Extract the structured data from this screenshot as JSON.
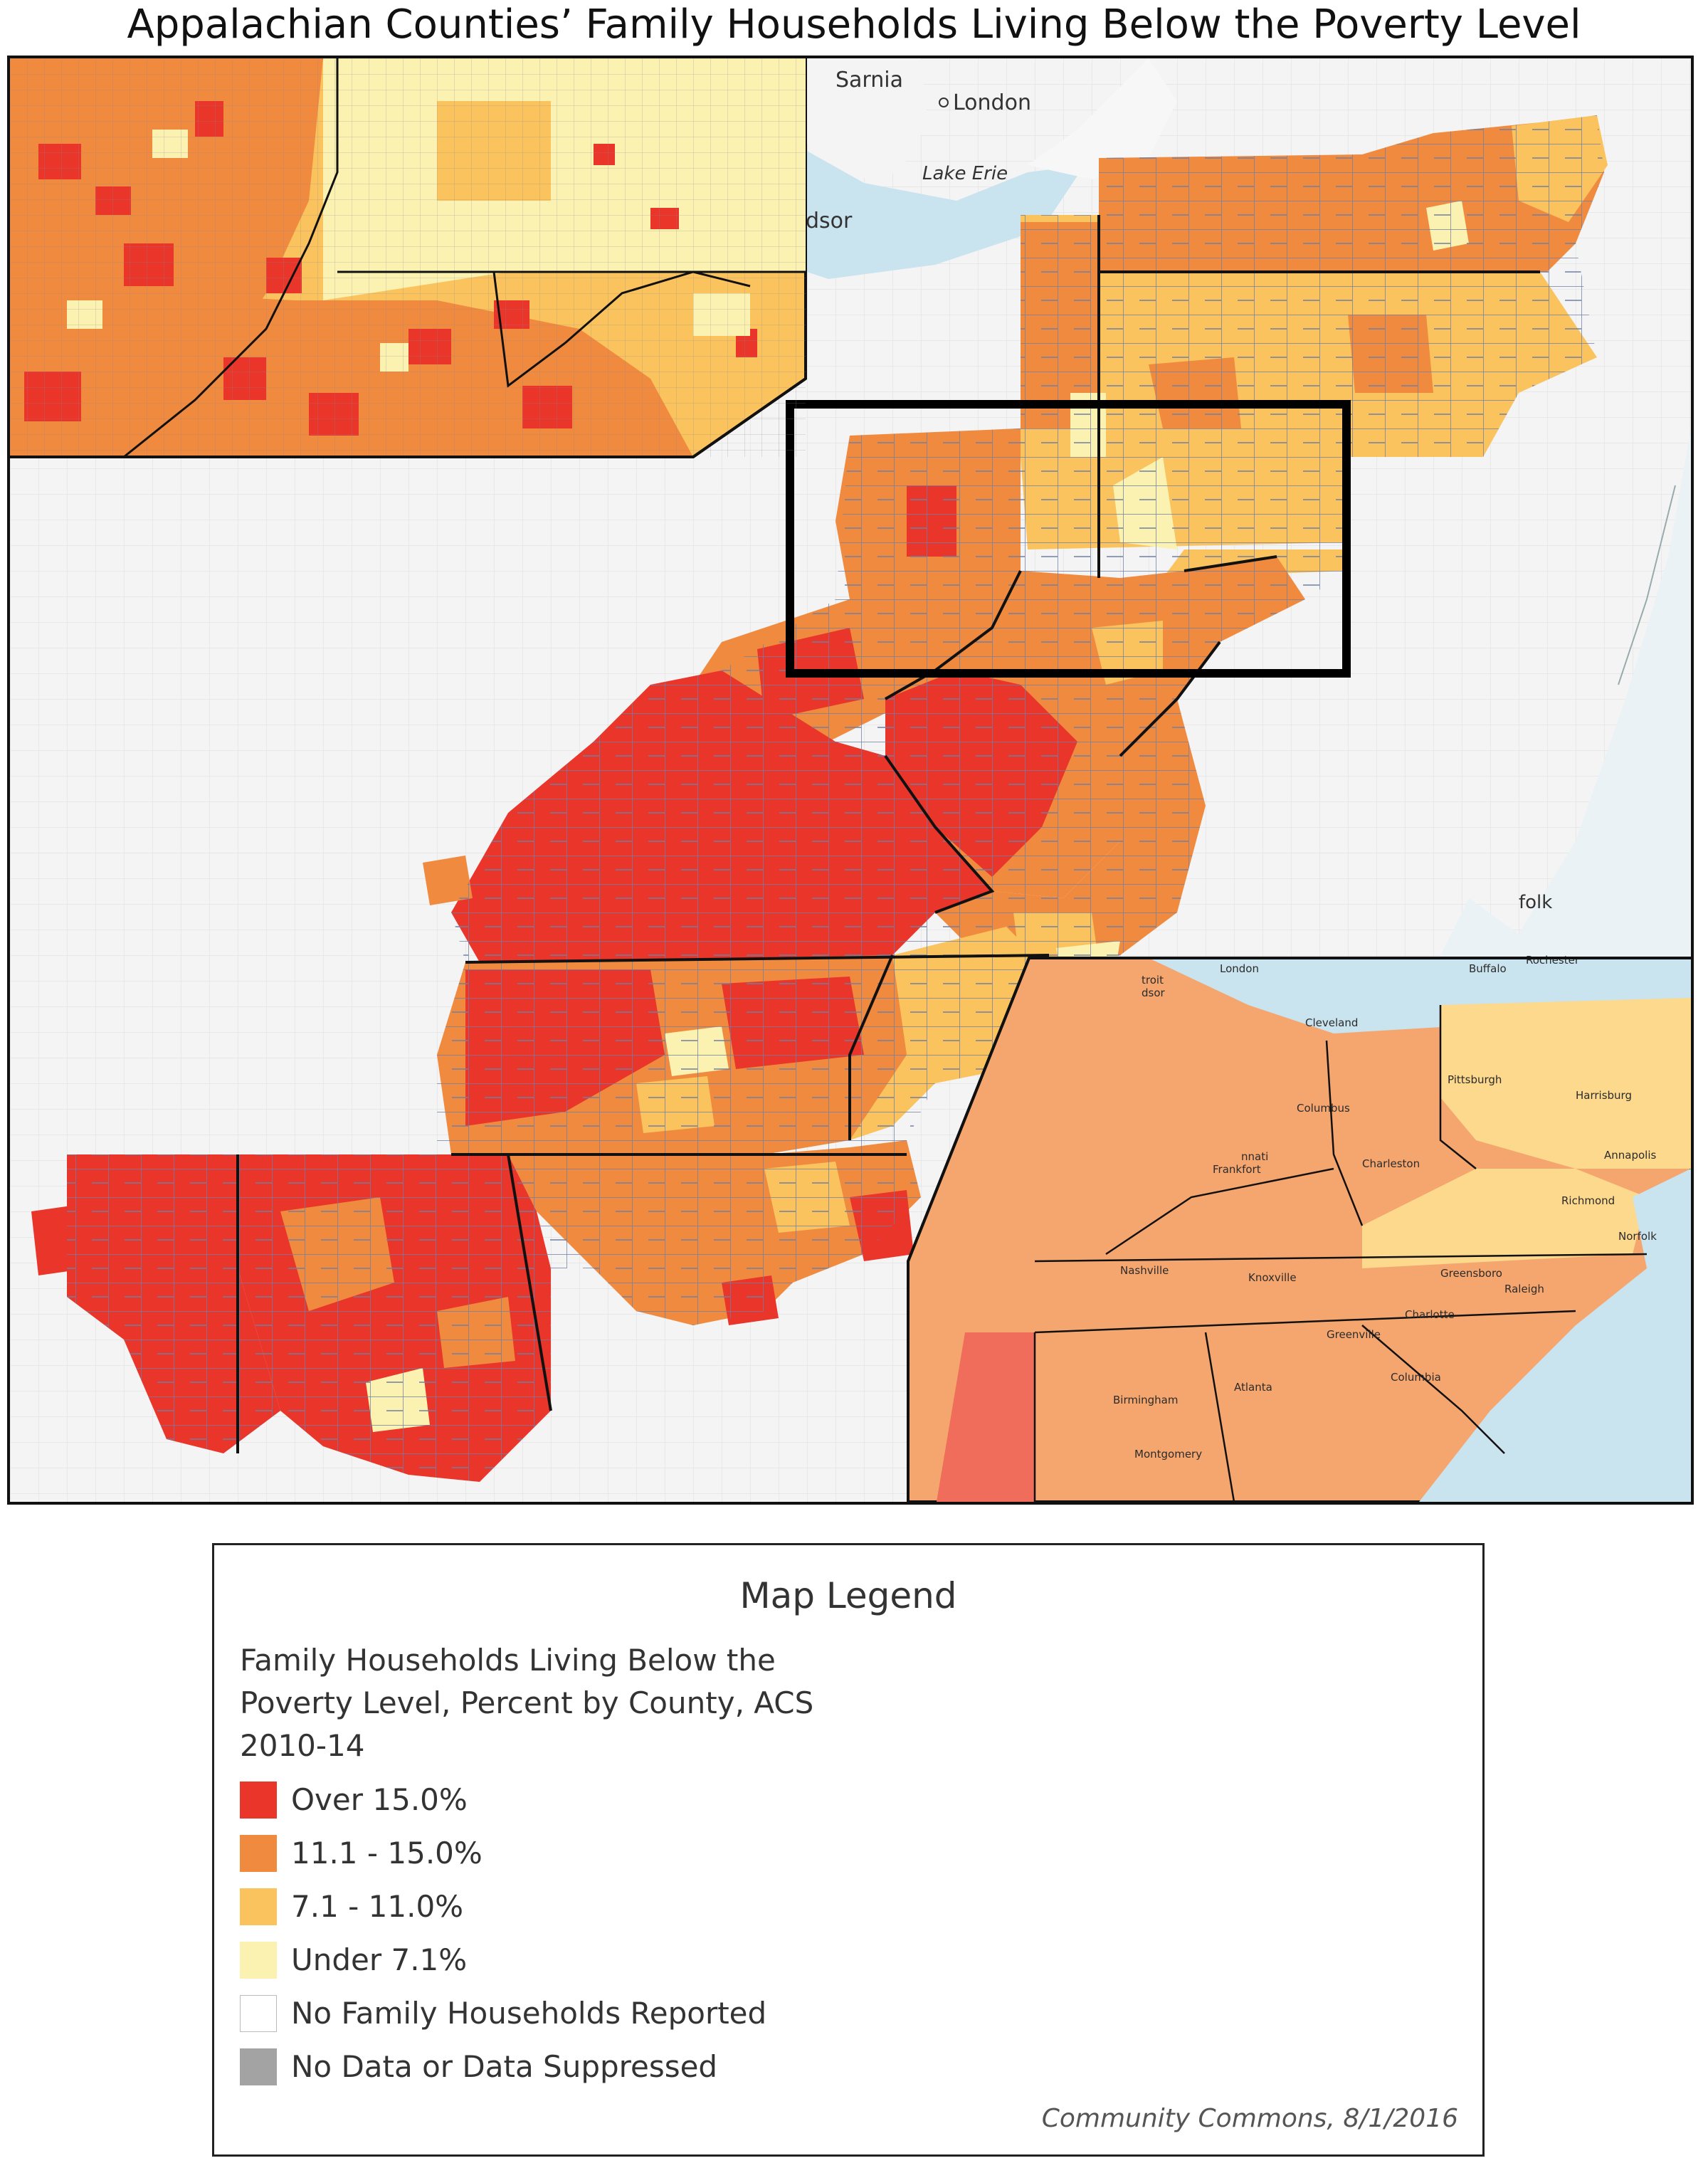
{
  "title": "Appalachian Counties’ Family Households Living Below the Poverty Level",
  "colors": {
    "over_15": "#e9352a",
    "range_11_15": "#f08a3e",
    "range_7_11": "#fbc35e",
    "under_7": "#fbf1b0",
    "no_households": "#ffffff",
    "no_data": "#a3a3a3",
    "water": "#c9e3ef",
    "land": "#f4f4f4"
  },
  "map": {
    "basemap_labels": {
      "sarnia": "Sarnia",
      "london": "London",
      "lake_erie": "Lake Erie",
      "windsor": "dsor",
      "norfolk": "folk"
    },
    "inset_labels": {
      "london": "London",
      "buffalo": "Buffalo",
      "rochester": "Rochester",
      "detroit": "troit",
      "windsor": "dsor",
      "cleveland": "Cleveland",
      "pittsburgh": "Pittsburgh",
      "harrisburg": "Harrisburg",
      "columbus_oh": "Columbus",
      "cincinnati": "nnati",
      "annapolis": "Annapolis",
      "charleston": "Charleston",
      "frankfort": "Frankfort",
      "richmond": "Richmond",
      "norfolk": "Norfolk",
      "nashville": "Nashville",
      "knoxville": "Knoxville",
      "greensboro": "Greensboro",
      "raleigh": "Raleigh",
      "charlotte": "Charlotte",
      "greenville": "Greenville",
      "atlanta": "Atlanta",
      "columbia": "Columbia",
      "birmingham": "Birmingham",
      "montgomery": "Montgomery"
    }
  },
  "legend": {
    "title": "Map Legend",
    "subtitle": "Family Households Living Below the Poverty Level, Percent by County, ACS 2010-14",
    "items": [
      {
        "label": "Over 15.0%",
        "color": "#e9352a"
      },
      {
        "label": "11.1 - 15.0%",
        "color": "#f08a3e"
      },
      {
        "label": "7.1 - 11.0%",
        "color": "#fbc35e"
      },
      {
        "label": "Under 7.1%",
        "color": "#fbf1b0"
      },
      {
        "label": "No Family Households Reported",
        "color": "#ffffff"
      },
      {
        "label": "No Data or Data Suppressed",
        "color": "#a3a3a3"
      }
    ],
    "credit": "Community Commons, 8/1/2016"
  }
}
